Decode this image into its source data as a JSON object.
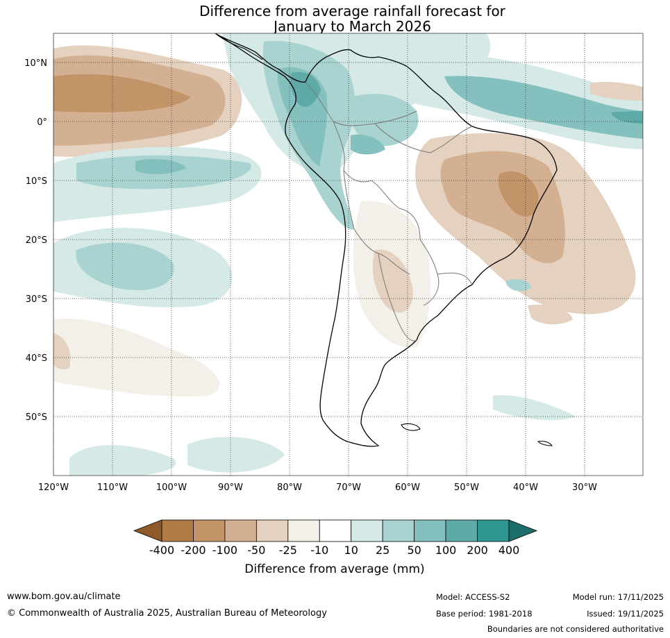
{
  "title": {
    "line1": "Difference from average rainfall forecast for",
    "line2": "January to March 2026"
  },
  "map": {
    "region": "South America",
    "lat_labels": [
      "10°N",
      "0°",
      "10°S",
      "20°S",
      "30°S",
      "40°S",
      "50°S"
    ],
    "lon_labels": [
      "120°W",
      "110°W",
      "100°W",
      "90°W",
      "80°W",
      "70°W",
      "60°W",
      "50°W",
      "40°W",
      "30°W"
    ],
    "gridlines": "dotted"
  },
  "legend": {
    "title": "Difference from average (mm)",
    "tick_labels": [
      "-400",
      "-200",
      "-100",
      "-50",
      "-25",
      "-10",
      "10",
      "25",
      "50",
      "100",
      "200",
      "400"
    ],
    "colors": [
      "#8f5a2a",
      "#b07b45",
      "#c39468",
      "#d3b091",
      "#e5d1bf",
      "#f3efe9",
      "#ffffff",
      "#d5e9e7",
      "#a9d3d0",
      "#84c0bd",
      "#5eaaa7",
      "#2e9791",
      "#1b6e6a"
    ]
  },
  "footer": {
    "website": "www.bom.gov.au/climate",
    "copyright": "© Commonwealth of Australia 2025, Australian Bureau of Meteorology",
    "model": "Model: ACCESS-S2",
    "base_period": "Base period: 1981-2018",
    "model_run": "Model run: 17/11/2025",
    "issued": "Issued: 19/11/2025",
    "disclaimer": "Boundaries are not considered authoritative"
  }
}
